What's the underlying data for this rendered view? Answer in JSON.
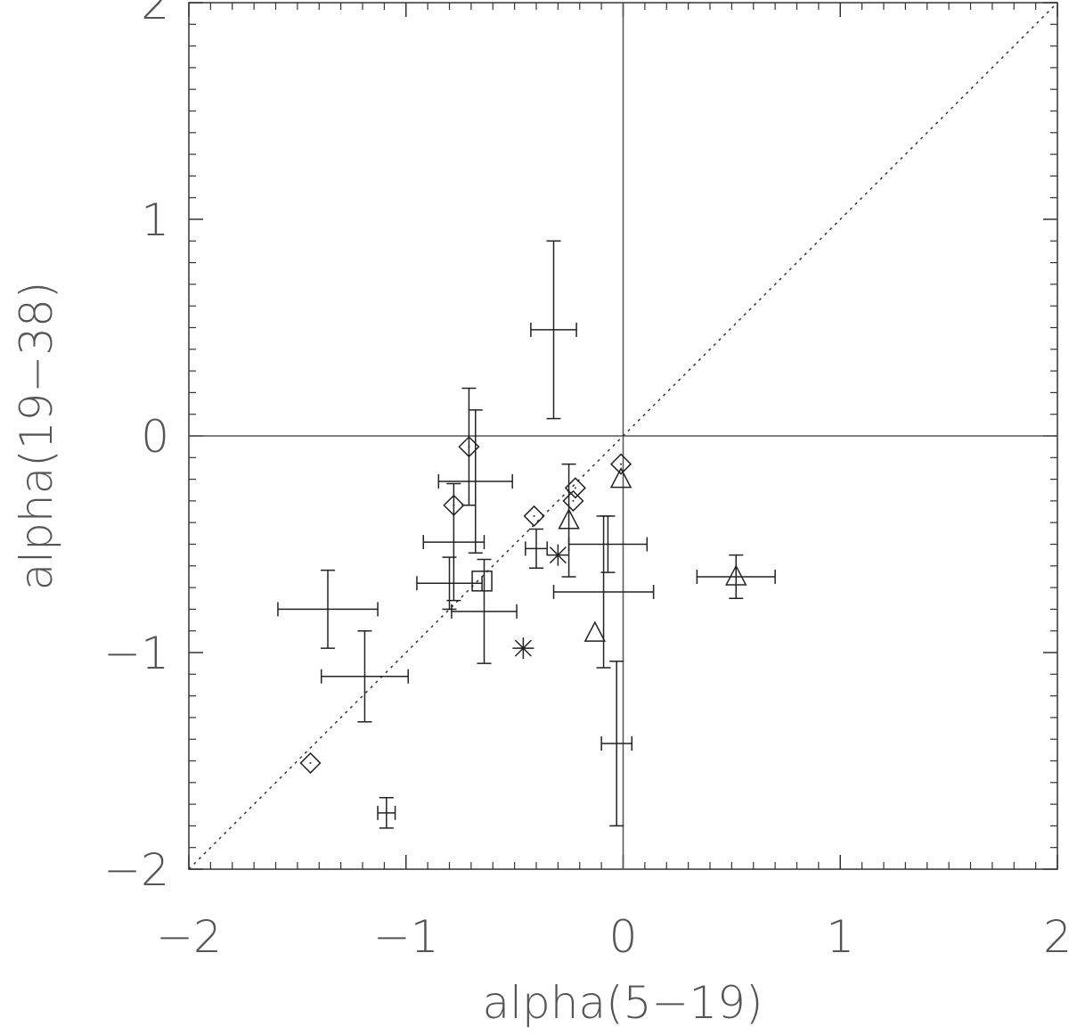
{
  "chart_data": {
    "type": "scatter",
    "xlabel": "alpha(5−19)",
    "ylabel": "alpha(19−38)",
    "xlim": [
      -2,
      2
    ],
    "ylim": [
      -2,
      2
    ],
    "xticks": [
      {
        "value": -2,
        "label": "−2"
      },
      {
        "value": -1,
        "label": "−1"
      },
      0,
      1,
      2
    ],
    "yticks": [
      {
        "value": -2,
        "label": "−2"
      },
      {
        "value": -1,
        "label": "−1"
      },
      0,
      1,
      2
    ],
    "minor_divisions": 10,
    "hlines": [
      0
    ],
    "vlines": [
      0
    ],
    "identity_line": true,
    "color": "#222222",
    "series": [
      {
        "marker": "none",
        "x": [
          -0.32,
          -1.36,
          -1.19,
          -0.68,
          -0.78,
          -0.8,
          -0.64,
          -0.4,
          -0.07,
          -0.09,
          -0.03,
          -1.09
        ],
        "y": [
          0.49,
          -0.8,
          -1.11,
          -0.21,
          -0.49,
          -0.68,
          -0.81,
          -0.52,
          -0.5,
          -0.72,
          -1.42,
          -1.74
        ],
        "xerr": [
          0.105,
          0.23,
          0.2,
          0.17,
          0.14,
          0.15,
          0.15,
          0.05,
          0.18,
          0.23,
          0.07,
          0.04
        ],
        "yerr": [
          0.41,
          0.18,
          0.21,
          0.33,
          0.27,
          0.12,
          0.24,
          0.09,
          0.13,
          0.35,
          0.38,
          0.07
        ]
      },
      {
        "marker": "diamond",
        "x": [
          -0.71,
          -0.78,
          -0.41,
          -0.22,
          -0.23,
          -0.01,
          -1.44
        ],
        "y": [
          -0.05,
          -0.32,
          -0.37,
          -0.24,
          -0.3,
          -0.13,
          -1.51
        ],
        "xerr": [
          null,
          null,
          null,
          null,
          null,
          null,
          null
        ],
        "yerr": [
          0.27,
          null,
          null,
          null,
          null,
          null,
          null
        ]
      },
      {
        "marker": "triangle",
        "x": [
          -0.01,
          -0.25,
          -0.13,
          0.52
        ],
        "y": [
          -0.2,
          -0.39,
          -0.91,
          -0.65
        ],
        "xerr": [
          null,
          null,
          null,
          0.18
        ],
        "yerr": [
          null,
          0.26,
          null,
          0.1
        ]
      },
      {
        "marker": "square",
        "x": [
          -0.65
        ],
        "y": [
          -0.67
        ],
        "xerr": [
          null
        ],
        "yerr": [
          null
        ]
      },
      {
        "marker": "asterisk",
        "x": [
          -0.3,
          -0.46
        ],
        "y": [
          -0.55,
          -0.98
        ],
        "xerr": [
          null,
          null
        ],
        "yerr": [
          null,
          null
        ]
      }
    ]
  }
}
